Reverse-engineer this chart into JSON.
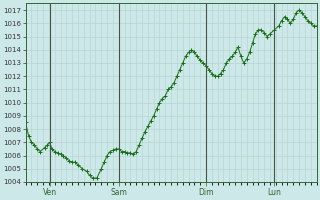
{
  "background_color": "#cce8e8",
  "plot_bg_color": "#cce8e8",
  "grid_color": "#b8d0d0",
  "line_color": "#1a6e1a",
  "marker_color": "#1a6e1a",
  "ylim": [
    1004,
    1017.5
  ],
  "yticks": [
    1004,
    1005,
    1006,
    1007,
    1008,
    1009,
    1010,
    1011,
    1012,
    1013,
    1014,
    1015,
    1016,
    1017
  ],
  "xtick_labels": [
    "Ven",
    "Sam",
    "Dim",
    "Lun"
  ],
  "xtick_positions": [
    0.083,
    0.32,
    0.62,
    0.855
  ],
  "xlim": [
    0,
    1
  ],
  "x_values": [
    0.0,
    0.01,
    0.02,
    0.03,
    0.04,
    0.05,
    0.065,
    0.075,
    0.083,
    0.09,
    0.1,
    0.11,
    0.12,
    0.13,
    0.14,
    0.15,
    0.16,
    0.17,
    0.18,
    0.195,
    0.21,
    0.22,
    0.23,
    0.245,
    0.26,
    0.27,
    0.28,
    0.29,
    0.3,
    0.31,
    0.32,
    0.33,
    0.34,
    0.35,
    0.36,
    0.37,
    0.38,
    0.39,
    0.4,
    0.41,
    0.42,
    0.43,
    0.44,
    0.45,
    0.46,
    0.47,
    0.48,
    0.49,
    0.5,
    0.51,
    0.52,
    0.53,
    0.54,
    0.55,
    0.56,
    0.57,
    0.58,
    0.59,
    0.6,
    0.61,
    0.62,
    0.63,
    0.64,
    0.65,
    0.66,
    0.67,
    0.68,
    0.69,
    0.7,
    0.71,
    0.72,
    0.73,
    0.74,
    0.75,
    0.76,
    0.77,
    0.78,
    0.79,
    0.8,
    0.81,
    0.82,
    0.83,
    0.84,
    0.855,
    0.87,
    0.88,
    0.89,
    0.9,
    0.91,
    0.92,
    0.93,
    0.94,
    0.95,
    0.96,
    0.97,
    0.98,
    0.99,
    1.0
  ],
  "y_values": [
    1008.5,
    1007.5,
    1007.0,
    1006.8,
    1006.5,
    1006.3,
    1006.6,
    1006.8,
    1007.0,
    1006.5,
    1006.3,
    1006.2,
    1006.1,
    1006.0,
    1005.8,
    1005.6,
    1005.5,
    1005.5,
    1005.3,
    1005.0,
    1004.8,
    1004.5,
    1004.3,
    1004.3,
    1005.0,
    1005.5,
    1006.0,
    1006.3,
    1006.4,
    1006.5,
    1006.5,
    1006.3,
    1006.3,
    1006.2,
    1006.2,
    1006.1,
    1006.3,
    1006.8,
    1007.3,
    1007.8,
    1008.2,
    1008.6,
    1009.0,
    1009.5,
    1010.0,
    1010.3,
    1010.5,
    1011.0,
    1011.2,
    1011.5,
    1012.0,
    1012.5,
    1013.0,
    1013.5,
    1013.8,
    1014.0,
    1013.8,
    1013.5,
    1013.2,
    1013.0,
    1012.8,
    1012.5,
    1012.2,
    1012.0,
    1012.0,
    1012.2,
    1012.5,
    1013.0,
    1013.3,
    1013.5,
    1013.8,
    1014.2,
    1013.5,
    1013.0,
    1013.3,
    1013.8,
    1014.5,
    1015.2,
    1015.5,
    1015.5,
    1015.3,
    1015.0,
    1015.2,
    1015.5,
    1015.8,
    1016.2,
    1016.5,
    1016.3,
    1016.0,
    1016.3,
    1016.8,
    1017.0,
    1016.8,
    1016.5,
    1016.2,
    1016.0,
    1015.8,
    1015.8
  ]
}
